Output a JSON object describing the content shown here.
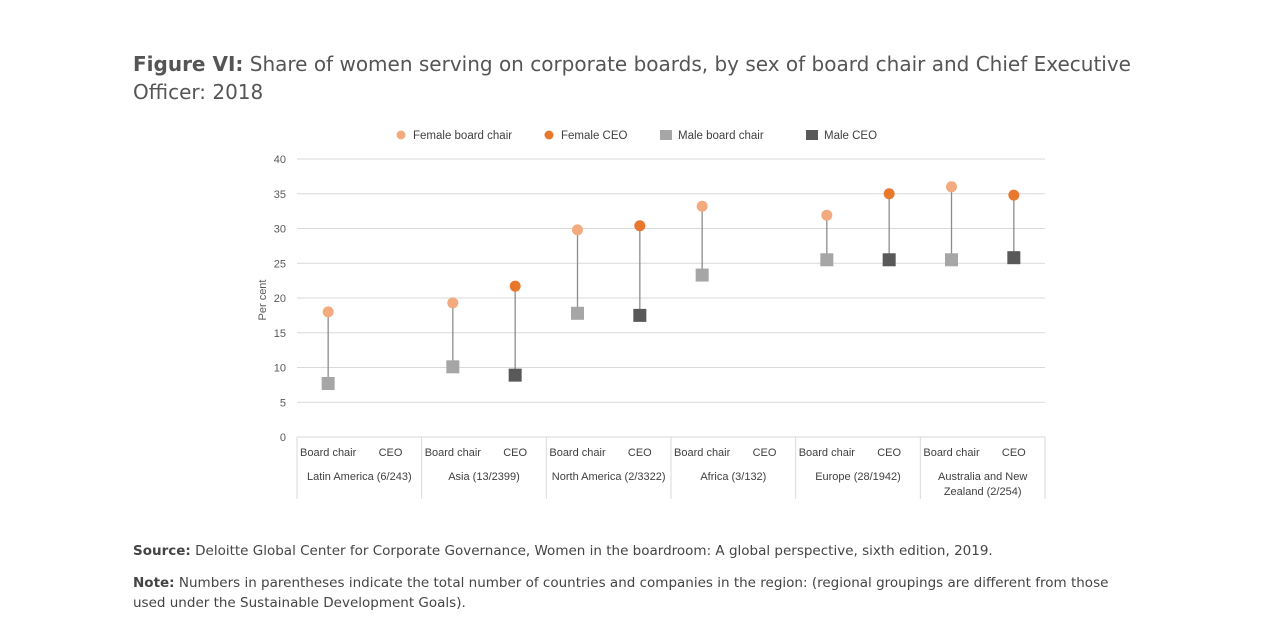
{
  "figure": {
    "label": "Figure VI:",
    "title_text": " Share of women serving on corporate boards, by sex of board chair and Chief Executive Officer: 2018"
  },
  "chart_data": {
    "type": "dot-plot",
    "ylabel": "Per cent",
    "ylim": [
      0,
      40
    ],
    "yticks": [
      0,
      5,
      10,
      15,
      20,
      25,
      30,
      35,
      40
    ],
    "legend": [
      {
        "name": "Female board chair",
        "shape": "circle",
        "color": "#F2AA7E"
      },
      {
        "name": "Female CEO",
        "shape": "circle",
        "color": "#E8782E"
      },
      {
        "name": "Male board chair",
        "shape": "square",
        "color": "#A6A6A6"
      },
      {
        "name": "Male CEO",
        "shape": "square",
        "color": "#595959"
      }
    ],
    "groups": [
      {
        "name": "Latin America (6/243)",
        "name_lines": [
          "Latin America (6/243)"
        ],
        "board_chair": {
          "label": "Board chair",
          "female": 18,
          "male": 7.7
        },
        "ceo": {
          "label": "CEO",
          "female": null,
          "male": null
        }
      },
      {
        "name": "Asia (13/2399)",
        "name_lines": [
          "Asia (13/2399)"
        ],
        "board_chair": {
          "label": "Board chair",
          "female": 19.3,
          "male": 10.1
        },
        "ceo": {
          "label": "CEO",
          "female": 21.7,
          "male": 8.9
        }
      },
      {
        "name": "North America (2/3322)",
        "name_lines": [
          "North America (2/3322)"
        ],
        "board_chair": {
          "label": "Board chair",
          "female": 29.8,
          "male": 17.8
        },
        "ceo": {
          "label": "CEO",
          "female": 30.4,
          "male": 17.5
        }
      },
      {
        "name": "Africa (3/132)",
        "name_lines": [
          "Africa (3/132)"
        ],
        "board_chair": {
          "label": "Board chair",
          "female": 33.2,
          "male": 23.3
        },
        "ceo": {
          "label": "CEO",
          "female": null,
          "male": null
        }
      },
      {
        "name": "Europe (28/1942)",
        "name_lines": [
          "Europe (28/1942)"
        ],
        "board_chair": {
          "label": "Board chair",
          "female": 31.9,
          "male": 25.5
        },
        "ceo": {
          "label": "CEO",
          "female": 35,
          "male": 25.5
        }
      },
      {
        "name": "Australia and New Zealand (2/254)",
        "name_lines": [
          "Australia and New",
          "Zealand (2/254)"
        ],
        "board_chair": {
          "label": "Board chair",
          "female": 36,
          "male": 25.5
        },
        "ceo": {
          "label": "CEO",
          "female": 34.8,
          "male": 25.8
        }
      }
    ]
  },
  "footnotes": {
    "source_label": "Source:",
    "source_text": " Deloitte Global Center for Corporate Governance, Women in the boardroom: A global perspective, sixth edition, 2019.",
    "note_label": "Note:",
    "note_text": " Numbers in parentheses indicate the total number of countries and companies in the region: (regional groupings are different from those used under the Sustainable Development Goals)."
  }
}
